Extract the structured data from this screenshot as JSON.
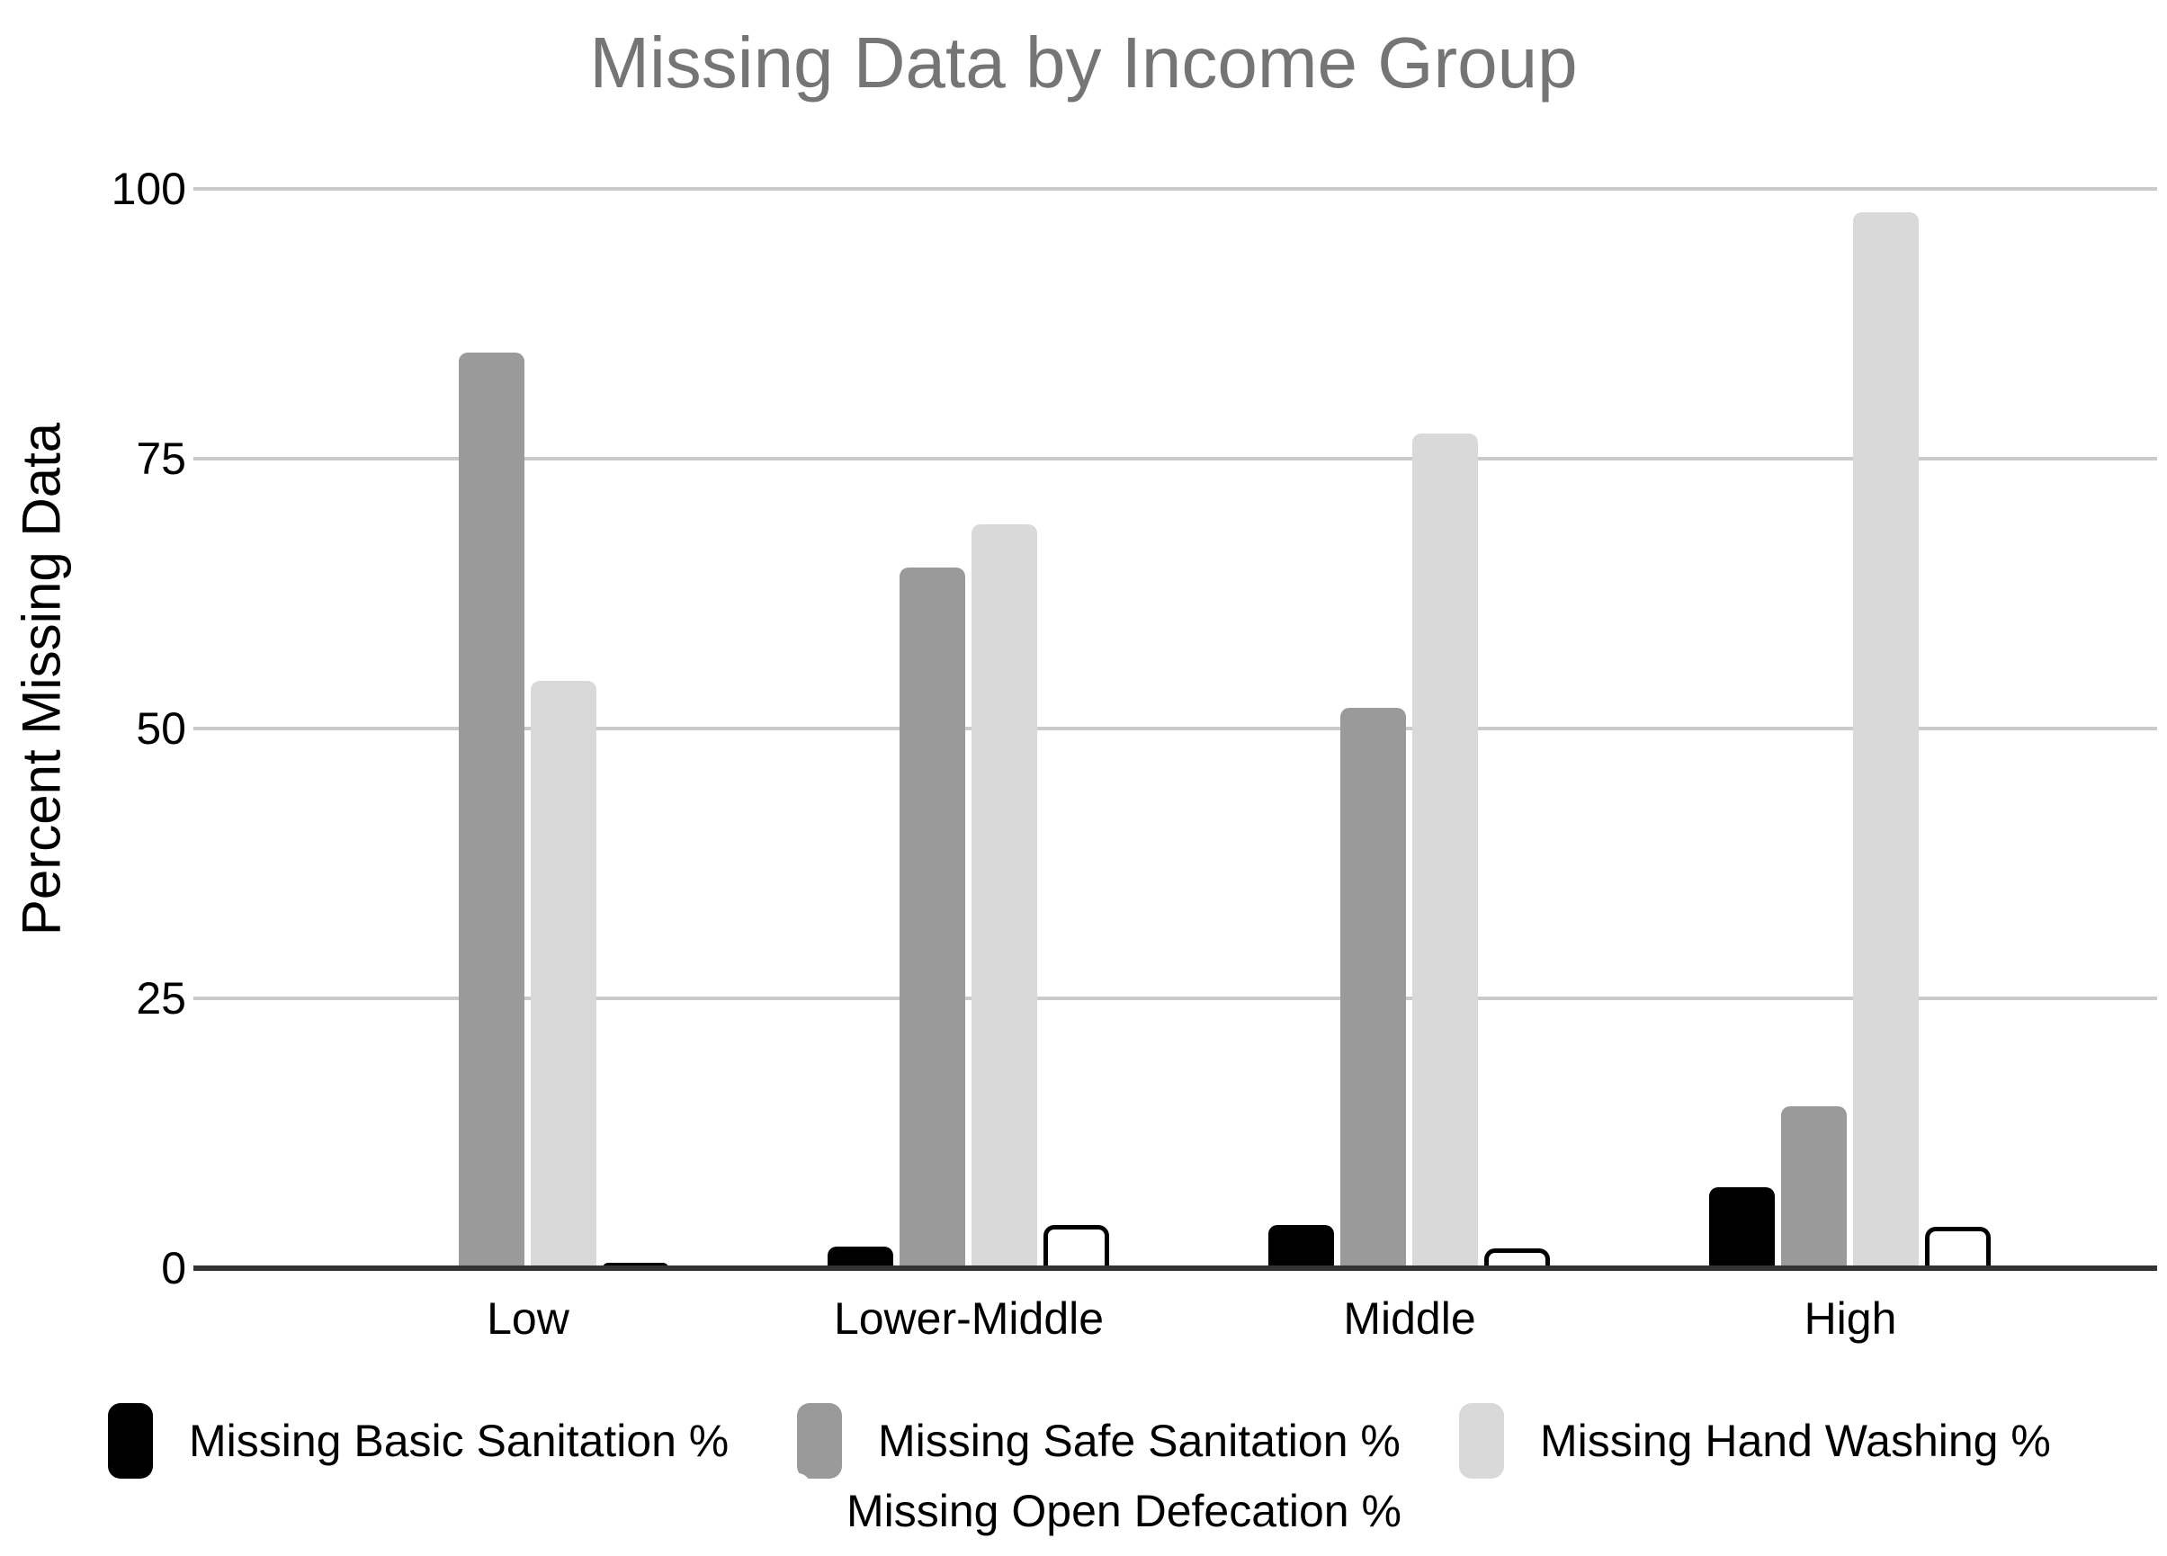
{
  "chart_data": {
    "type": "bar",
    "title": "Missing Data by Income Group",
    "xlabel": "",
    "ylabel": "Percent Missing Data",
    "ylim": [
      0,
      100
    ],
    "yticks": [
      "0",
      "25",
      "50",
      "75",
      "100"
    ],
    "grid": true,
    "legend_position": "bottom",
    "categories": [
      "Low",
      "Lower-Middle",
      "Middle",
      "High"
    ],
    "series": [
      {
        "name": "Missing Basic Sanitation %",
        "color": "#000000",
        "outline": null,
        "values": [
          0,
          2,
          4,
          7.5
        ]
      },
      {
        "name": "Missing Safe Sanitation %",
        "color": "#9a9a9a",
        "outline": null,
        "values": [
          85,
          65,
          52,
          15
        ]
      },
      {
        "name": "Missing Hand Washing %",
        "color": "#d9d9d9",
        "outline": null,
        "values": [
          54.5,
          69,
          77.5,
          98
        ]
      },
      {
        "name": "Missing Open Defecation %",
        "color": "#ffffff",
        "outline": "#000000",
        "values": [
          0.5,
          4,
          1.8,
          3.8
        ]
      }
    ]
  },
  "colors": {
    "title_text": "#757575",
    "axis_text": "#000000",
    "gridline": "#cbcbcb",
    "axis_line": "#333333",
    "background": "#ffffff"
  }
}
